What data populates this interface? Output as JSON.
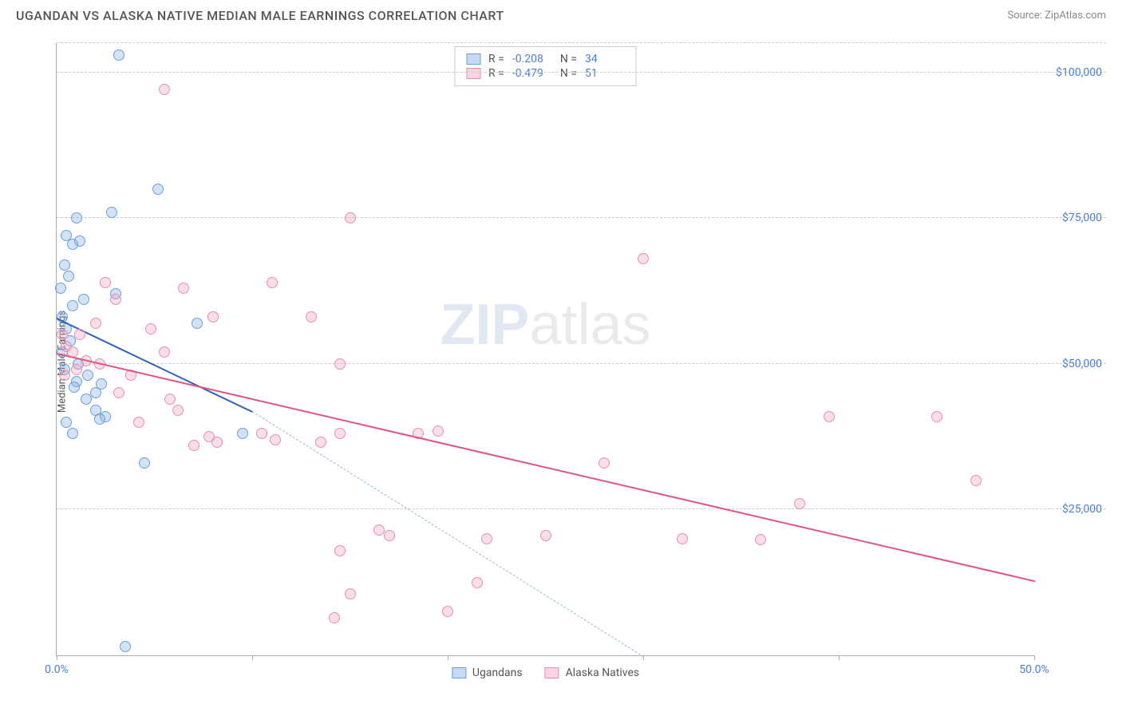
{
  "title": "UGANDAN VS ALASKA NATIVE MEDIAN MALE EARNINGS CORRELATION CHART",
  "source_label": "Source: ZipAtlas.com",
  "y_axis_label": "Median Male Earnings",
  "watermark": {
    "bold": "ZIP",
    "light": "atlas"
  },
  "chart": {
    "type": "scatter",
    "xlim": [
      0,
      50
    ],
    "ylim": [
      0,
      105000
    ],
    "x_ticks": [
      0,
      10,
      20,
      30,
      40,
      50
    ],
    "x_tick_labels": {
      "0": "0.0%",
      "50": "50.0%"
    },
    "y_gridlines": [
      25000,
      50000,
      75000,
      100000
    ],
    "y_tick_labels": [
      "$25,000",
      "$50,000",
      "$75,000",
      "$100,000"
    ],
    "grid_color": "#cccccc",
    "axis_color": "#aaaaaa",
    "background_color": "#ffffff",
    "tick_label_color": "#4a7fd6"
  },
  "series": [
    {
      "name": "Ugandans",
      "marker_fill": "rgba(128,172,230,0.35)",
      "marker_stroke": "#6a9fde",
      "line_color": "#2f62b8",
      "line_width": 2.5,
      "dash_color": "#9bb8da",
      "R": "-0.208",
      "N": "34",
      "trend": {
        "x1": 0,
        "y1": 58000,
        "x2": 10,
        "y2": 42000,
        "extend_to_x": 30,
        "extend_to_y": 0
      },
      "points": [
        [
          3.2,
          103000
        ],
        [
          1.0,
          75000
        ],
        [
          0.5,
          72000
        ],
        [
          0.8,
          70500
        ],
        [
          1.2,
          71000
        ],
        [
          0.4,
          67000
        ],
        [
          0.6,
          65000
        ],
        [
          5.2,
          80000
        ],
        [
          2.8,
          76000
        ],
        [
          0.3,
          58000
        ],
        [
          0.5,
          56000
        ],
        [
          0.8,
          60000
        ],
        [
          1.4,
          61000
        ],
        [
          3.0,
          62000
        ],
        [
          7.2,
          57000
        ],
        [
          0.3,
          52000
        ],
        [
          0.7,
          54000
        ],
        [
          1.0,
          47000
        ],
        [
          1.5,
          44000
        ],
        [
          2.0,
          45000
        ],
        [
          2.5,
          41000
        ],
        [
          2.0,
          42000
        ],
        [
          2.2,
          40500
        ],
        [
          0.5,
          40000
        ],
        [
          0.8,
          38000
        ],
        [
          4.5,
          33000
        ],
        [
          9.5,
          38000
        ],
        [
          3.5,
          1500
        ],
        [
          0.2,
          63000
        ],
        [
          0.4,
          49000
        ],
        [
          1.1,
          50000
        ],
        [
          0.9,
          46000
        ],
        [
          1.6,
          48000
        ],
        [
          2.3,
          46500
        ]
      ]
    },
    {
      "name": "Alaska Natives",
      "marker_fill": "rgba(244,160,190,0.35)",
      "marker_stroke": "#e88fb2",
      "line_color": "#e0567e",
      "line_width": 2.5,
      "R": "-0.479",
      "N": "51",
      "trend": {
        "x1": 0,
        "y1": 52000,
        "x2": 50,
        "y2": 13000
      },
      "points": [
        [
          5.5,
          97000
        ],
        [
          15,
          75000
        ],
        [
          30,
          68000
        ],
        [
          2.5,
          64000
        ],
        [
          3.0,
          61000
        ],
        [
          6.5,
          63000
        ],
        [
          11,
          64000
        ],
        [
          0.3,
          55000
        ],
        [
          0.5,
          53000
        ],
        [
          0.8,
          52000
        ],
        [
          1.2,
          55000
        ],
        [
          2.0,
          57000
        ],
        [
          4.8,
          56000
        ],
        [
          5.5,
          52000
        ],
        [
          8.0,
          58000
        ],
        [
          13,
          58000
        ],
        [
          14.5,
          50000
        ],
        [
          3.8,
          48000
        ],
        [
          5.8,
          44000
        ],
        [
          6.2,
          42000
        ],
        [
          7.0,
          36000
        ],
        [
          7.8,
          37500
        ],
        [
          8.2,
          36500
        ],
        [
          10.5,
          38000
        ],
        [
          11.2,
          37000
        ],
        [
          13.5,
          36500
        ],
        [
          14.5,
          38000
        ],
        [
          18.5,
          38000
        ],
        [
          19.5,
          38500
        ],
        [
          28,
          33000
        ],
        [
          45,
          41000
        ],
        [
          47,
          30000
        ],
        [
          38,
          26000
        ],
        [
          32,
          20000
        ],
        [
          36,
          19800
        ],
        [
          25,
          20500
        ],
        [
          22,
          20000
        ],
        [
          21.5,
          12500
        ],
        [
          20,
          7500
        ],
        [
          17,
          20500
        ],
        [
          16.5,
          21500
        ],
        [
          14.5,
          18000
        ],
        [
          15,
          10500
        ],
        [
          14.2,
          6500
        ],
        [
          39.5,
          41000
        ],
        [
          0.4,
          48000
        ],
        [
          1.0,
          49000
        ],
        [
          1.5,
          50500
        ],
        [
          2.2,
          50000
        ],
        [
          3.2,
          45000
        ],
        [
          4.2,
          40000
        ]
      ]
    }
  ],
  "stats_box": {
    "rows": [
      {
        "swatch_fill": "rgba(128,172,230,0.45)",
        "swatch_stroke": "#6a9fde",
        "R_label": "R =",
        "R_val": "-0.208",
        "N_label": "N =",
        "N_val": "34"
      },
      {
        "swatch_fill": "rgba(244,160,190,0.45)",
        "swatch_stroke": "#e88fb2",
        "R_label": "R =",
        "R_val": "-0.479",
        "N_label": "N =",
        "N_val": "51"
      }
    ]
  },
  "legend": [
    {
      "label": "Ugandans",
      "fill": "rgba(128,172,230,0.45)",
      "stroke": "#6a9fde"
    },
    {
      "label": "Alaska Natives",
      "fill": "rgba(244,160,190,0.45)",
      "stroke": "#e88fb2"
    }
  ]
}
